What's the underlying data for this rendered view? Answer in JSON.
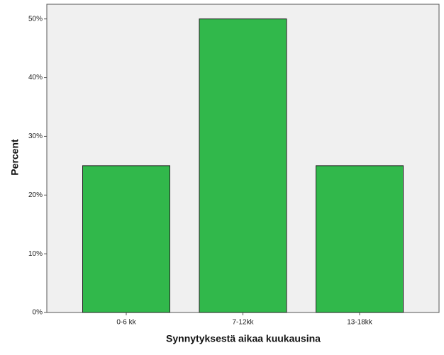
{
  "chart_data": {
    "type": "bar",
    "x_label": "Synnytyksestä aikaa kuukausina",
    "y_label": "Percent",
    "categories": [
      "0-6 kk",
      "7-12kk",
      "13-18kk"
    ],
    "values": [
      25,
      50,
      25
    ],
    "color": "#31b84b",
    "ylim": [
      0,
      52.5
    ],
    "yticks": [
      {
        "value": 0,
        "label": "0%"
      },
      {
        "value": 10,
        "label": "10%"
      },
      {
        "value": 20,
        "label": "20%"
      },
      {
        "value": 30,
        "label": "30%"
      },
      {
        "value": 40,
        "label": "40%"
      },
      {
        "value": 50,
        "label": "50%"
      }
    ]
  }
}
